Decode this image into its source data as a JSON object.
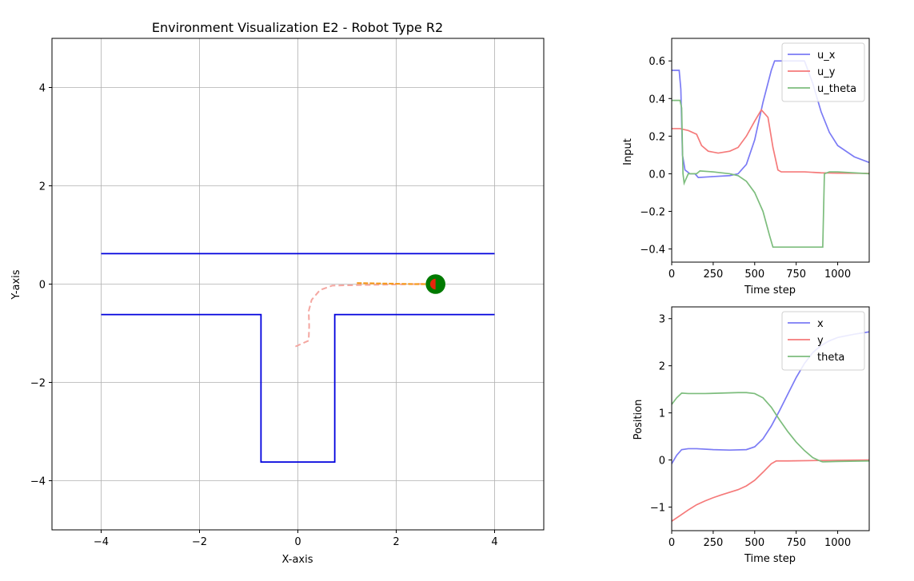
{
  "chart_data": [
    {
      "type": "line",
      "title": "Environment Visualization E2 - Robot Type R2",
      "xlabel": "X-axis",
      "ylabel": "Y-axis",
      "xlim": [
        -5,
        5
      ],
      "ylim": [
        -5,
        5
      ],
      "xticks": [
        -4,
        -2,
        0,
        2,
        4
      ],
      "yticks": [
        -4,
        -2,
        0,
        2,
        4
      ],
      "grid": true,
      "colors": {
        "walls": "#0000dd",
        "trajectory": "#f4a6a0",
        "prediction": "#f59a1f",
        "robot": "#007a00",
        "heading": "#e8250c"
      },
      "walls": [
        [
          [
            -4,
            0.62
          ],
          [
            4,
            0.62
          ]
        ],
        [
          [
            -4,
            -0.62
          ],
          [
            -0.75,
            -0.62
          ],
          [
            -0.75,
            -3.62
          ],
          [
            0.75,
            -3.62
          ],
          [
            0.75,
            -0.62
          ],
          [
            4,
            -0.62
          ]
        ]
      ],
      "trajectory": [
        [
          -0.05,
          -1.27
        ],
        [
          0.22,
          -1.15
        ],
        [
          0.23,
          -0.85
        ],
        [
          0.22,
          -0.55
        ],
        [
          0.28,
          -0.32
        ],
        [
          0.45,
          -0.12
        ],
        [
          0.7,
          -0.03
        ],
        [
          1.2,
          -0.02
        ],
        [
          1.8,
          -0.01
        ],
        [
          2.4,
          0.0
        ],
        [
          2.75,
          0.01
        ]
      ],
      "prediction": [
        [
          1.2,
          0.02
        ],
        [
          1.8,
          0.01
        ],
        [
          2.4,
          0.0
        ],
        [
          2.8,
          0.0
        ]
      ],
      "robot": {
        "x": 2.8,
        "y": 0.0,
        "radius": 0.2
      }
    },
    {
      "type": "line",
      "xlabel": "Time step",
      "ylabel": "Input",
      "xlim": [
        0,
        1190
      ],
      "ylim": [
        -0.47,
        0.72
      ],
      "xticks": [
        0,
        250,
        500,
        750,
        1000
      ],
      "yticks": [
        -0.4,
        -0.2,
        0.0,
        0.2,
        0.4,
        0.6
      ],
      "legend": "top-right",
      "series": [
        {
          "name": "u_x",
          "color": "#7b7bf5",
          "points": [
            [
              0,
              0.55
            ],
            [
              45,
              0.55
            ],
            [
              55,
              0.45
            ],
            [
              65,
              0.1
            ],
            [
              80,
              0.02
            ],
            [
              110,
              0.0
            ],
            [
              140,
              0.0
            ],
            [
              160,
              -0.02
            ],
            [
              250,
              -0.015
            ],
            [
              350,
              -0.01
            ],
            [
              400,
              0.0
            ],
            [
              450,
              0.05
            ],
            [
              500,
              0.18
            ],
            [
              550,
              0.38
            ],
            [
              600,
              0.55
            ],
            [
              620,
              0.6
            ],
            [
              800,
              0.6
            ],
            [
              850,
              0.48
            ],
            [
              900,
              0.33
            ],
            [
              950,
              0.22
            ],
            [
              1000,
              0.15
            ],
            [
              1100,
              0.09
            ],
            [
              1190,
              0.06
            ]
          ]
        },
        {
          "name": "u_y",
          "color": "#f57a7a",
          "points": [
            [
              0,
              0.24
            ],
            [
              50,
              0.24
            ],
            [
              100,
              0.23
            ],
            [
              150,
              0.21
            ],
            [
              180,
              0.15
            ],
            [
              220,
              0.12
            ],
            [
              280,
              0.11
            ],
            [
              350,
              0.12
            ],
            [
              400,
              0.14
            ],
            [
              450,
              0.2
            ],
            [
              500,
              0.28
            ],
            [
              540,
              0.34
            ],
            [
              580,
              0.3
            ],
            [
              610,
              0.14
            ],
            [
              640,
              0.02
            ],
            [
              660,
              0.01
            ],
            [
              800,
              0.01
            ],
            [
              900,
              0.005
            ],
            [
              1000,
              0.003
            ],
            [
              1190,
              0.002
            ]
          ]
        },
        {
          "name": "u_theta",
          "color": "#7dbd7d",
          "points": [
            [
              0,
              0.39
            ],
            [
              50,
              0.39
            ],
            [
              60,
              0.35
            ],
            [
              68,
              0.0
            ],
            [
              75,
              -0.05
            ],
            [
              85,
              -0.03
            ],
            [
              100,
              0.0
            ],
            [
              150,
              0.0
            ],
            [
              170,
              0.015
            ],
            [
              250,
              0.01
            ],
            [
              350,
              0.0
            ],
            [
              400,
              -0.01
            ],
            [
              450,
              -0.04
            ],
            [
              500,
              -0.1
            ],
            [
              550,
              -0.2
            ],
            [
              590,
              -0.33
            ],
            [
              610,
              -0.39
            ],
            [
              910,
              -0.39
            ],
            [
              920,
              0.0
            ],
            [
              950,
              0.01
            ],
            [
              1000,
              0.01
            ],
            [
              1190,
              0.0
            ]
          ]
        }
      ]
    },
    {
      "type": "line",
      "xlabel": "Time step",
      "ylabel": "Position",
      "xlim": [
        0,
        1190
      ],
      "ylim": [
        -1.5,
        3.25
      ],
      "xticks": [
        0,
        250,
        500,
        750,
        1000
      ],
      "yticks": [
        -1,
        0,
        1,
        2,
        3
      ],
      "legend": "top-right",
      "series": [
        {
          "name": "x",
          "color": "#7b7bf5",
          "points": [
            [
              0,
              -0.08
            ],
            [
              30,
              0.1
            ],
            [
              60,
              0.22
            ],
            [
              100,
              0.24
            ],
            [
              150,
              0.24
            ],
            [
              250,
              0.22
            ],
            [
              350,
              0.21
            ],
            [
              450,
              0.22
            ],
            [
              500,
              0.28
            ],
            [
              550,
              0.45
            ],
            [
              600,
              0.72
            ],
            [
              650,
              1.05
            ],
            [
              700,
              1.4
            ],
            [
              750,
              1.75
            ],
            [
              800,
              2.05
            ],
            [
              850,
              2.28
            ],
            [
              900,
              2.43
            ],
            [
              950,
              2.53
            ],
            [
              1000,
              2.6
            ],
            [
              1100,
              2.67
            ],
            [
              1190,
              2.72
            ]
          ]
        },
        {
          "name": "y",
          "color": "#f57a7a",
          "points": [
            [
              0,
              -1.3
            ],
            [
              50,
              -1.18
            ],
            [
              100,
              -1.06
            ],
            [
              150,
              -0.95
            ],
            [
              200,
              -0.87
            ],
            [
              250,
              -0.8
            ],
            [
              300,
              -0.74
            ],
            [
              400,
              -0.63
            ],
            [
              450,
              -0.55
            ],
            [
              500,
              -0.43
            ],
            [
              550,
              -0.26
            ],
            [
              600,
              -0.08
            ],
            [
              630,
              -0.02
            ],
            [
              700,
              -0.02
            ],
            [
              900,
              -0.01
            ],
            [
              1190,
              0.0
            ]
          ]
        },
        {
          "name": "theta",
          "color": "#7dbd7d",
          "points": [
            [
              0,
              1.18
            ],
            [
              30,
              1.32
            ],
            [
              60,
              1.42
            ],
            [
              100,
              1.41
            ],
            [
              200,
              1.41
            ],
            [
              300,
              1.42
            ],
            [
              400,
              1.43
            ],
            [
              450,
              1.43
            ],
            [
              500,
              1.41
            ],
            [
              550,
              1.32
            ],
            [
              600,
              1.12
            ],
            [
              650,
              0.85
            ],
            [
              700,
              0.6
            ],
            [
              750,
              0.38
            ],
            [
              800,
              0.2
            ],
            [
              850,
              0.05
            ],
            [
              900,
              -0.03
            ],
            [
              910,
              -0.04
            ],
            [
              1000,
              -0.03
            ],
            [
              1190,
              -0.02
            ]
          ]
        }
      ]
    }
  ]
}
